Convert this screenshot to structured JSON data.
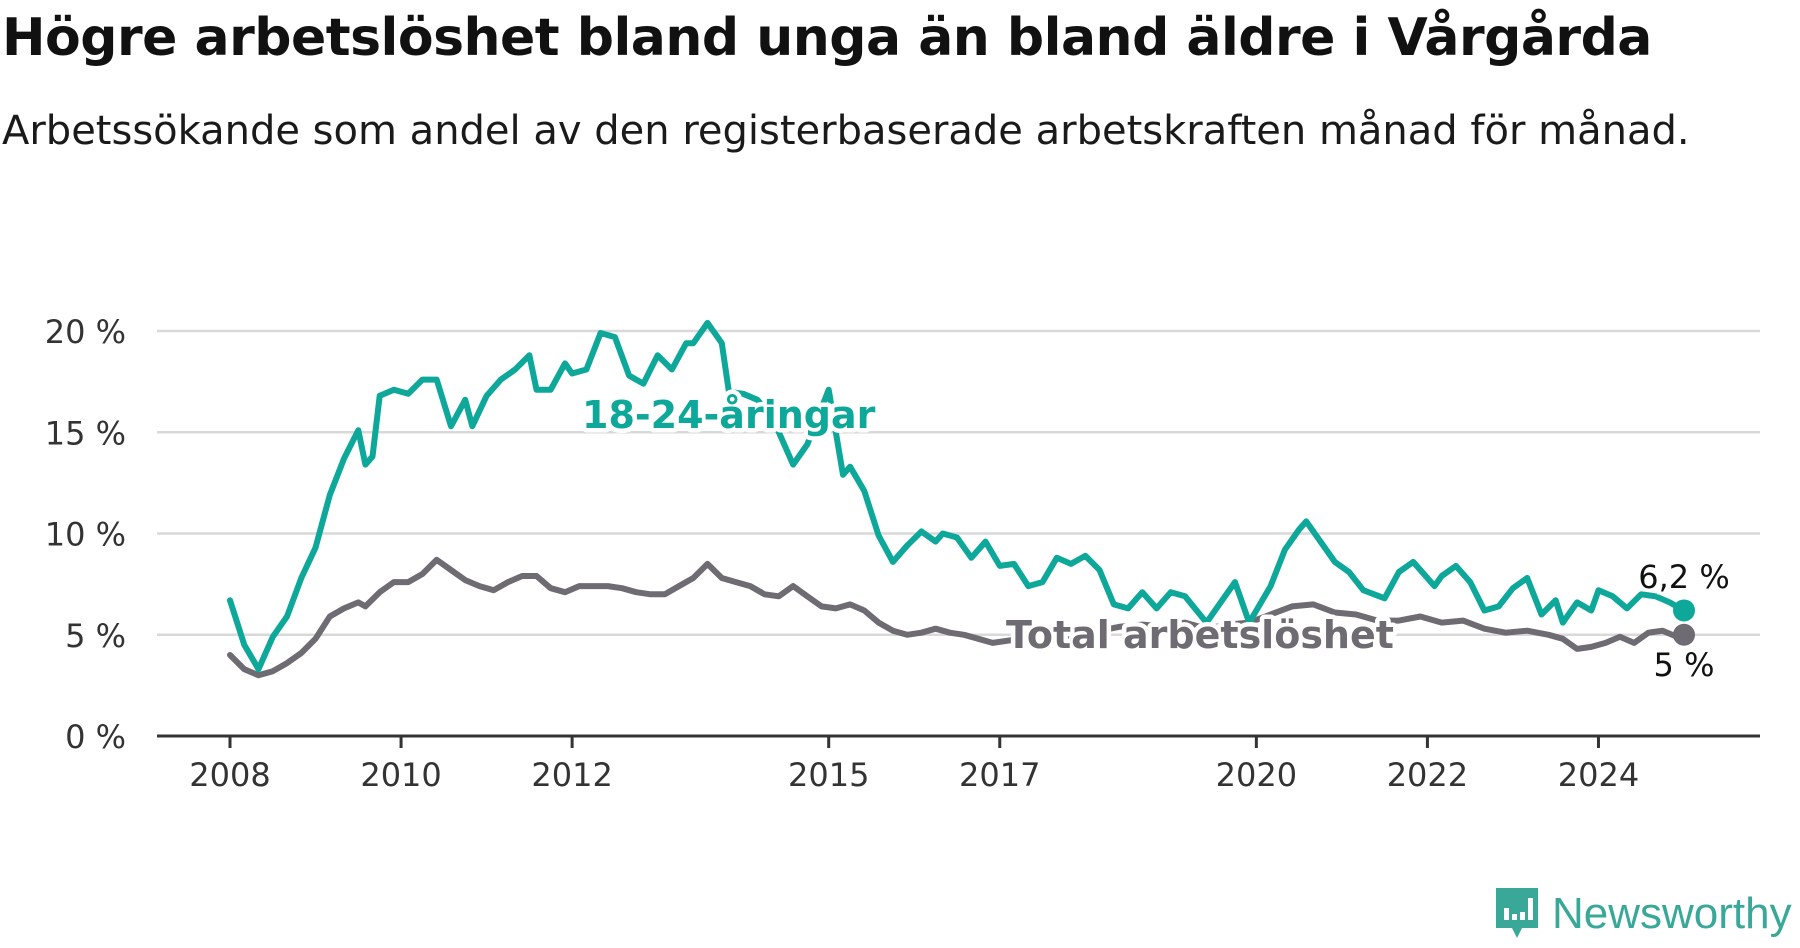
{
  "header": {
    "title": "Högre arbetslöshet bland unga än bland äldre i Vårgårda",
    "subtitle": "Arbetssökande som andel av den registerbaserade arbetskraften månad för månad."
  },
  "brand": {
    "name": "Newsworthy",
    "icon": "newsworthy-logo-icon",
    "color": "#3aa899"
  },
  "chart_data": {
    "type": "line",
    "title": "Högre arbetslöshet bland unga än bland äldre i Vårgårda",
    "subtitle": "Arbetssökande som andel av den registerbaserade arbetskraften månad för månad.",
    "xlabel": "",
    "ylabel": "",
    "xlim": [
      "2008-01",
      "2025-01"
    ],
    "ylim": [
      0,
      20
    ],
    "yticks": [
      0,
      5,
      10,
      15,
      20
    ],
    "ytick_labels": [
      "0 %",
      "5 %",
      "10 %",
      "15 %",
      "20 %"
    ],
    "xticks": [
      "2008",
      "2010",
      "2012",
      "2015",
      "2017",
      "2020",
      "2022",
      "2024"
    ],
    "grid": "horizontal",
    "legend": "inline labels",
    "series": [
      {
        "name": "18-24-åringar",
        "color": "#0ea89a",
        "end_label": "6,2 %",
        "points": [
          [
            "2008-01",
            6.7
          ],
          [
            "2008-03",
            4.5
          ],
          [
            "2008-05",
            3.3
          ],
          [
            "2008-07",
            4.9
          ],
          [
            "2008-09",
            5.9
          ],
          [
            "2008-11",
            7.8
          ],
          [
            "2009-01",
            9.3
          ],
          [
            "2009-03",
            11.9
          ],
          [
            "2009-05",
            13.7
          ],
          [
            "2009-07",
            15.1
          ],
          [
            "2009-08",
            13.4
          ],
          [
            "2009-09",
            13.8
          ],
          [
            "2009-10",
            16.8
          ],
          [
            "2009-12",
            17.1
          ],
          [
            "2010-02",
            16.9
          ],
          [
            "2010-04",
            17.6
          ],
          [
            "2010-06",
            17.6
          ],
          [
            "2010-08",
            15.3
          ],
          [
            "2010-10",
            16.6
          ],
          [
            "2010-11",
            15.3
          ],
          [
            "2011-01",
            16.8
          ],
          [
            "2011-03",
            17.6
          ],
          [
            "2011-05",
            18.1
          ],
          [
            "2011-07",
            18.8
          ],
          [
            "2011-08",
            17.1
          ],
          [
            "2011-10",
            17.1
          ],
          [
            "2011-12",
            18.4
          ],
          [
            "2012-01",
            17.9
          ],
          [
            "2012-03",
            18.1
          ],
          [
            "2012-05",
            19.9
          ],
          [
            "2012-07",
            19.7
          ],
          [
            "2012-09",
            17.8
          ],
          [
            "2012-11",
            17.4
          ],
          [
            "2013-01",
            18.8
          ],
          [
            "2013-03",
            18.1
          ],
          [
            "2013-05",
            19.4
          ],
          [
            "2013-06",
            19.4
          ],
          [
            "2013-08",
            20.4
          ],
          [
            "2013-10",
            19.4
          ],
          [
            "2013-11",
            17.0
          ],
          [
            "2014-01",
            16.9
          ],
          [
            "2014-03",
            16.6
          ],
          [
            "2014-05",
            15.8
          ],
          [
            "2014-08",
            13.4
          ],
          [
            "2014-10",
            14.4
          ],
          [
            "2015-01",
            17.1
          ],
          [
            "2015-03",
            12.9
          ],
          [
            "2015-04",
            13.3
          ],
          [
            "2015-06",
            12.1
          ],
          [
            "2015-08",
            9.9
          ],
          [
            "2015-10",
            8.6
          ],
          [
            "2015-12",
            9.4
          ],
          [
            "2016-02",
            10.1
          ],
          [
            "2016-04",
            9.6
          ],
          [
            "2016-05",
            10.0
          ],
          [
            "2016-07",
            9.8
          ],
          [
            "2016-09",
            8.8
          ],
          [
            "2016-11",
            9.6
          ],
          [
            "2017-01",
            8.4
          ],
          [
            "2017-03",
            8.5
          ],
          [
            "2017-05",
            7.4
          ],
          [
            "2017-07",
            7.6
          ],
          [
            "2017-09",
            8.8
          ],
          [
            "2017-11",
            8.5
          ],
          [
            "2018-01",
            8.9
          ],
          [
            "2018-03",
            8.2
          ],
          [
            "2018-05",
            6.5
          ],
          [
            "2018-07",
            6.3
          ],
          [
            "2018-09",
            7.1
          ],
          [
            "2018-11",
            6.3
          ],
          [
            "2019-01",
            7.1
          ],
          [
            "2019-03",
            6.9
          ],
          [
            "2019-06",
            5.6
          ],
          [
            "2019-08",
            6.6
          ],
          [
            "2019-10",
            7.6
          ],
          [
            "2019-12",
            5.6
          ],
          [
            "2020-03",
            7.4
          ],
          [
            "2020-05",
            9.2
          ],
          [
            "2020-07",
            10.2
          ],
          [
            "2020-08",
            10.6
          ],
          [
            "2020-10",
            9.6
          ],
          [
            "2020-12",
            8.6
          ],
          [
            "2021-02",
            8.1
          ],
          [
            "2021-04",
            7.2
          ],
          [
            "2021-07",
            6.8
          ],
          [
            "2021-09",
            8.1
          ],
          [
            "2021-11",
            8.6
          ],
          [
            "2022-02",
            7.4
          ],
          [
            "2022-03",
            7.9
          ],
          [
            "2022-05",
            8.4
          ],
          [
            "2022-07",
            7.6
          ],
          [
            "2022-09",
            6.2
          ],
          [
            "2022-11",
            6.4
          ],
          [
            "2023-01",
            7.3
          ],
          [
            "2023-03",
            7.8
          ],
          [
            "2023-05",
            6.0
          ],
          [
            "2023-07",
            6.7
          ],
          [
            "2023-08",
            5.6
          ],
          [
            "2023-10",
            6.6
          ],
          [
            "2023-12",
            6.2
          ],
          [
            "2024-01",
            7.2
          ],
          [
            "2024-03",
            6.9
          ],
          [
            "2024-05",
            6.3
          ],
          [
            "2024-07",
            7.0
          ],
          [
            "2024-09",
            6.9
          ],
          [
            "2024-11",
            6.6
          ],
          [
            "2025-01",
            6.2
          ]
        ]
      },
      {
        "name": "Total arbetslöshet",
        "color": "#6e6c72",
        "end_label": "5 %",
        "points": [
          [
            "2008-01",
            4.0
          ],
          [
            "2008-03",
            3.3
          ],
          [
            "2008-05",
            3.0
          ],
          [
            "2008-07",
            3.2
          ],
          [
            "2008-09",
            3.6
          ],
          [
            "2008-11",
            4.1
          ],
          [
            "2009-01",
            4.8
          ],
          [
            "2009-03",
            5.9
          ],
          [
            "2009-05",
            6.3
          ],
          [
            "2009-07",
            6.6
          ],
          [
            "2009-08",
            6.4
          ],
          [
            "2009-10",
            7.1
          ],
          [
            "2009-12",
            7.6
          ],
          [
            "2010-02",
            7.6
          ],
          [
            "2010-04",
            8.0
          ],
          [
            "2010-06",
            8.7
          ],
          [
            "2010-08",
            8.2
          ],
          [
            "2010-10",
            7.7
          ],
          [
            "2010-12",
            7.4
          ],
          [
            "2011-02",
            7.2
          ],
          [
            "2011-04",
            7.6
          ],
          [
            "2011-06",
            7.9
          ],
          [
            "2011-08",
            7.9
          ],
          [
            "2011-10",
            7.3
          ],
          [
            "2011-12",
            7.1
          ],
          [
            "2012-02",
            7.4
          ],
          [
            "2012-04",
            7.4
          ],
          [
            "2012-06",
            7.4
          ],
          [
            "2012-08",
            7.3
          ],
          [
            "2012-10",
            7.1
          ],
          [
            "2012-12",
            7.0
          ],
          [
            "2013-02",
            7.0
          ],
          [
            "2013-04",
            7.4
          ],
          [
            "2013-06",
            7.8
          ],
          [
            "2013-08",
            8.5
          ],
          [
            "2013-10",
            7.8
          ],
          [
            "2013-12",
            7.6
          ],
          [
            "2014-02",
            7.4
          ],
          [
            "2014-04",
            7.0
          ],
          [
            "2014-06",
            6.9
          ],
          [
            "2014-08",
            7.4
          ],
          [
            "2014-10",
            6.9
          ],
          [
            "2014-12",
            6.4
          ],
          [
            "2015-02",
            6.3
          ],
          [
            "2015-04",
            6.5
          ],
          [
            "2015-06",
            6.2
          ],
          [
            "2015-08",
            5.6
          ],
          [
            "2015-10",
            5.2
          ],
          [
            "2015-12",
            5.0
          ],
          [
            "2016-02",
            5.1
          ],
          [
            "2016-04",
            5.3
          ],
          [
            "2016-06",
            5.1
          ],
          [
            "2016-08",
            5.0
          ],
          [
            "2016-10",
            4.8
          ],
          [
            "2016-12",
            4.6
          ],
          [
            "2017-02",
            4.7
          ],
          [
            "2017-04",
            4.8
          ],
          [
            "2017-06",
            4.9
          ],
          [
            "2017-08",
            4.9
          ],
          [
            "2017-10",
            4.9
          ],
          [
            "2017-12",
            5.0
          ],
          [
            "2018-03",
            5.2
          ],
          [
            "2018-06",
            5.4
          ],
          [
            "2018-09",
            5.5
          ],
          [
            "2018-12",
            5.4
          ],
          [
            "2019-03",
            5.6
          ],
          [
            "2019-06",
            5.3
          ],
          [
            "2019-09",
            5.5
          ],
          [
            "2019-12",
            5.6
          ],
          [
            "2020-03",
            6.0
          ],
          [
            "2020-06",
            6.4
          ],
          [
            "2020-09",
            6.5
          ],
          [
            "2020-12",
            6.1
          ],
          [
            "2021-03",
            6.0
          ],
          [
            "2021-06",
            5.7
          ],
          [
            "2021-09",
            5.7
          ],
          [
            "2021-12",
            5.9
          ],
          [
            "2022-03",
            5.6
          ],
          [
            "2022-06",
            5.7
          ],
          [
            "2022-09",
            5.3
          ],
          [
            "2022-12",
            5.1
          ],
          [
            "2023-03",
            5.2
          ],
          [
            "2023-06",
            5.0
          ],
          [
            "2023-08",
            4.8
          ],
          [
            "2023-10",
            4.3
          ],
          [
            "2023-12",
            4.4
          ],
          [
            "2024-02",
            4.6
          ],
          [
            "2024-04",
            4.9
          ],
          [
            "2024-06",
            4.6
          ],
          [
            "2024-08",
            5.1
          ],
          [
            "2024-10",
            5.2
          ],
          [
            "2024-12",
            4.9
          ],
          [
            "2025-01",
            5.0
          ]
        ]
      }
    ]
  }
}
